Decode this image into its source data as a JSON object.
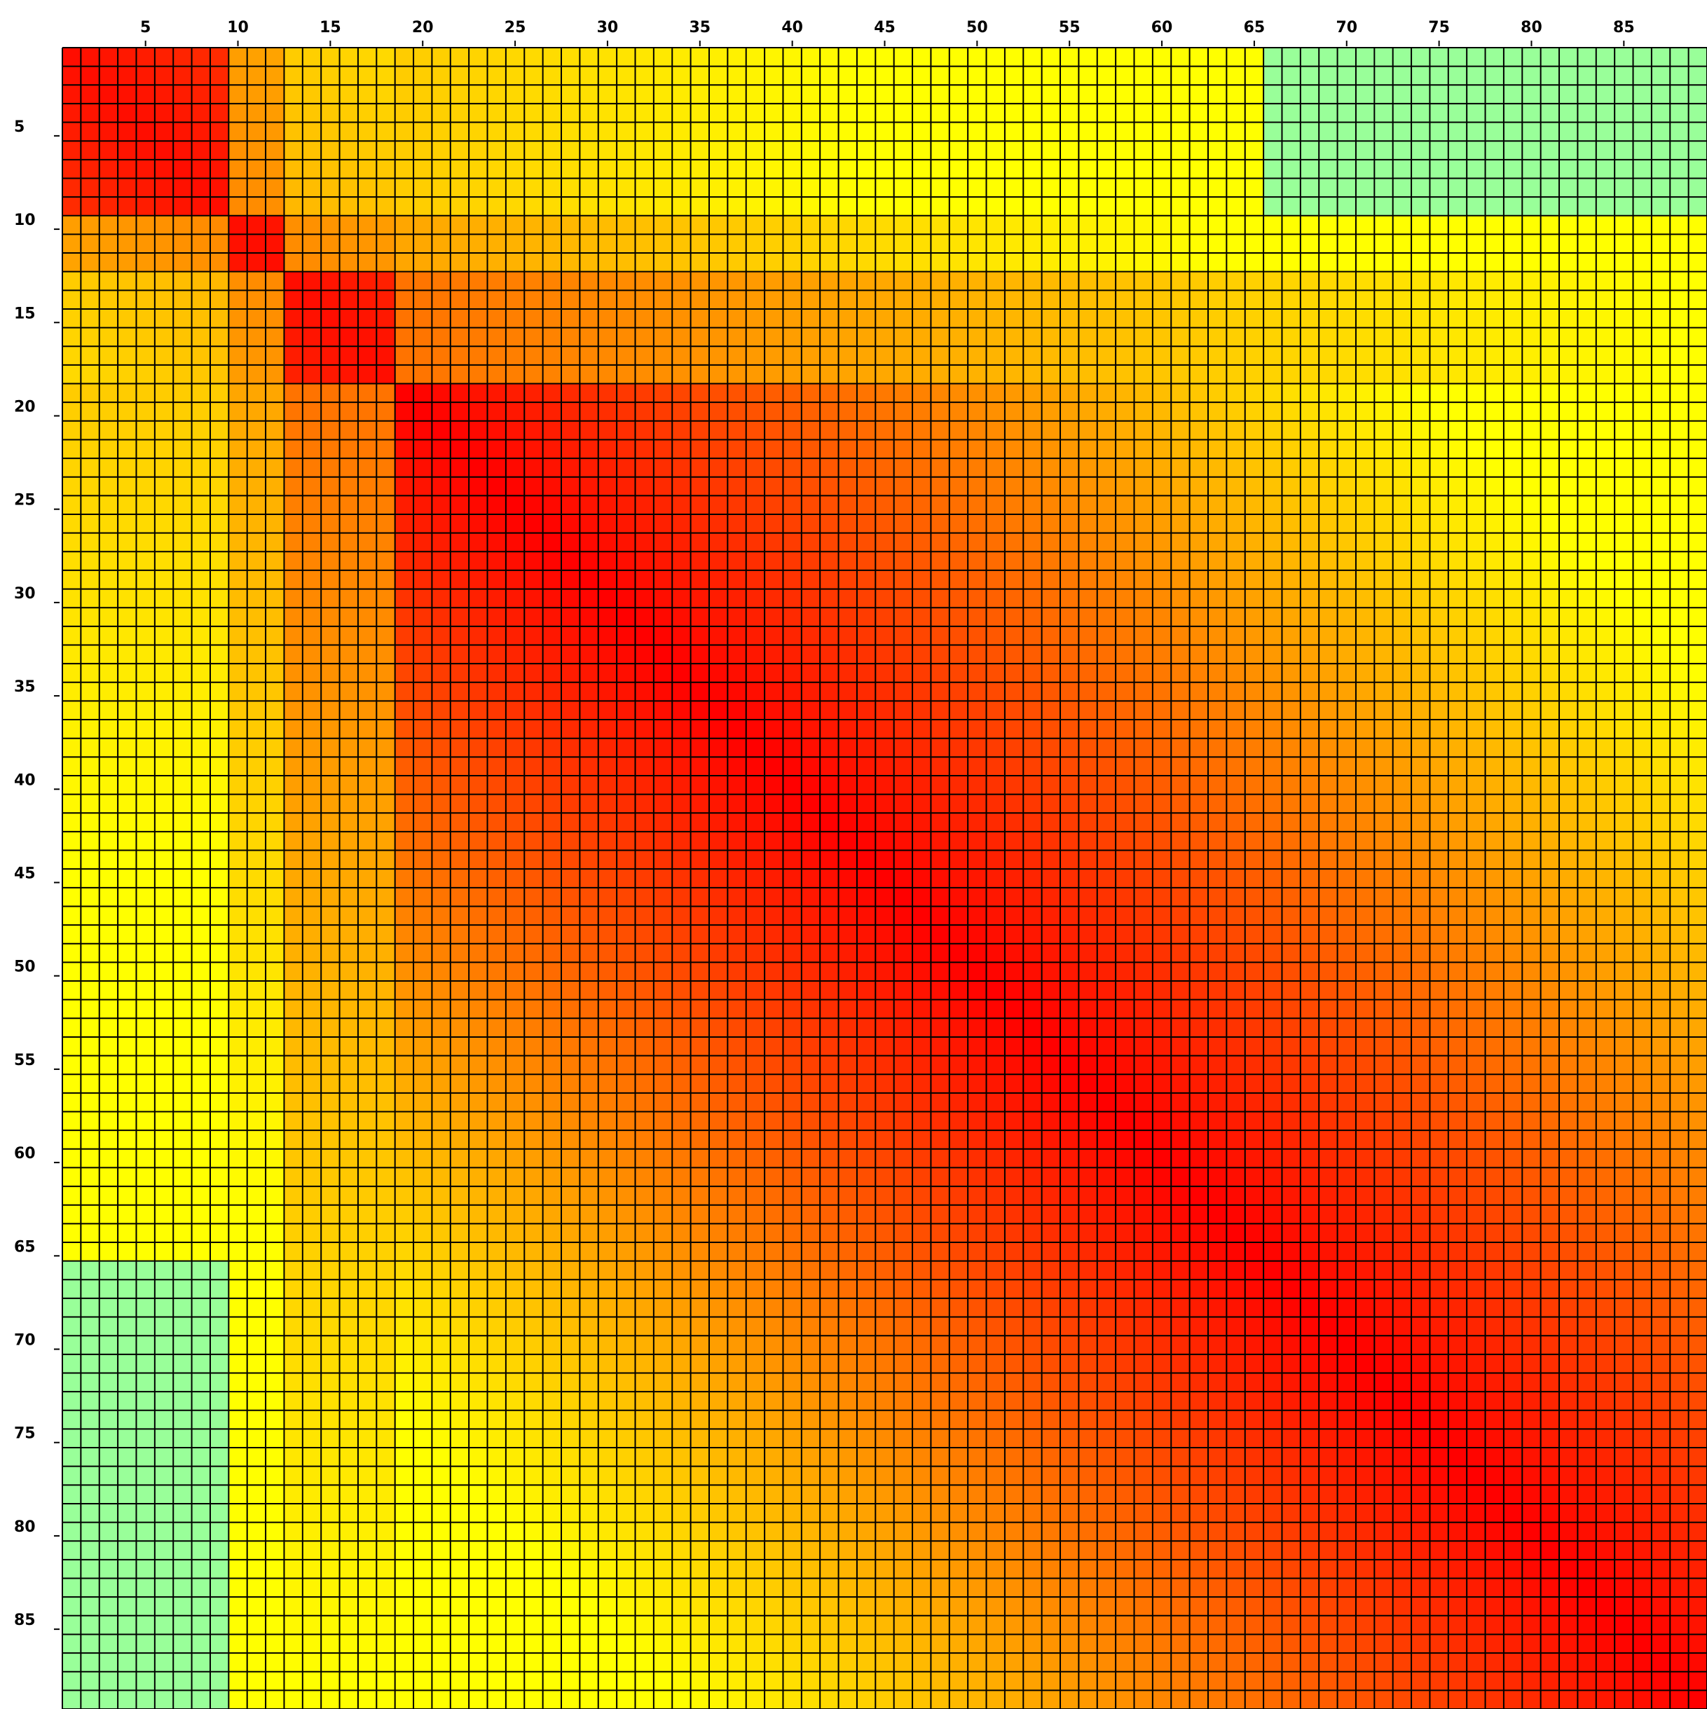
{
  "chart_data": {
    "type": "heatmap",
    "title": "",
    "xlabel": "",
    "ylabel": "",
    "rows": 89,
    "cols": 89,
    "x_ticks": [
      5,
      10,
      15,
      20,
      25,
      30,
      35,
      40,
      45,
      50,
      55,
      60,
      65,
      70,
      75,
      80,
      85
    ],
    "y_ticks": [
      5,
      10,
      15,
      20,
      25,
      30,
      35,
      40,
      45,
      50,
      55,
      60,
      65,
      70,
      75,
      80,
      85
    ],
    "x_axis_position": "top",
    "y_axis_position": "left",
    "grid": true,
    "legend": "none",
    "symmetric": true,
    "color_scale": {
      "high": "#ff0000",
      "mid": "#ff8c00",
      "low": "#ffff00",
      "outlier": "#99ff99"
    },
    "blocks": [
      {
        "rows": [
          1,
          9
        ],
        "intensity": 0.95
      },
      {
        "rows": [
          10,
          12
        ],
        "intensity": 0.95
      },
      {
        "rows": [
          13,
          18
        ],
        "intensity": 0.95
      },
      {
        "rows": [
          19,
          89
        ],
        "intensity": 1.0
      }
    ],
    "outlier_regions": [
      {
        "rows": [
          1,
          9
        ],
        "cols": [
          66,
          89
        ]
      },
      {
        "rows": [
          66,
          89
        ],
        "cols": [
          1,
          9
        ]
      }
    ],
    "grid_color": "#000000",
    "background": "#ffffff"
  }
}
